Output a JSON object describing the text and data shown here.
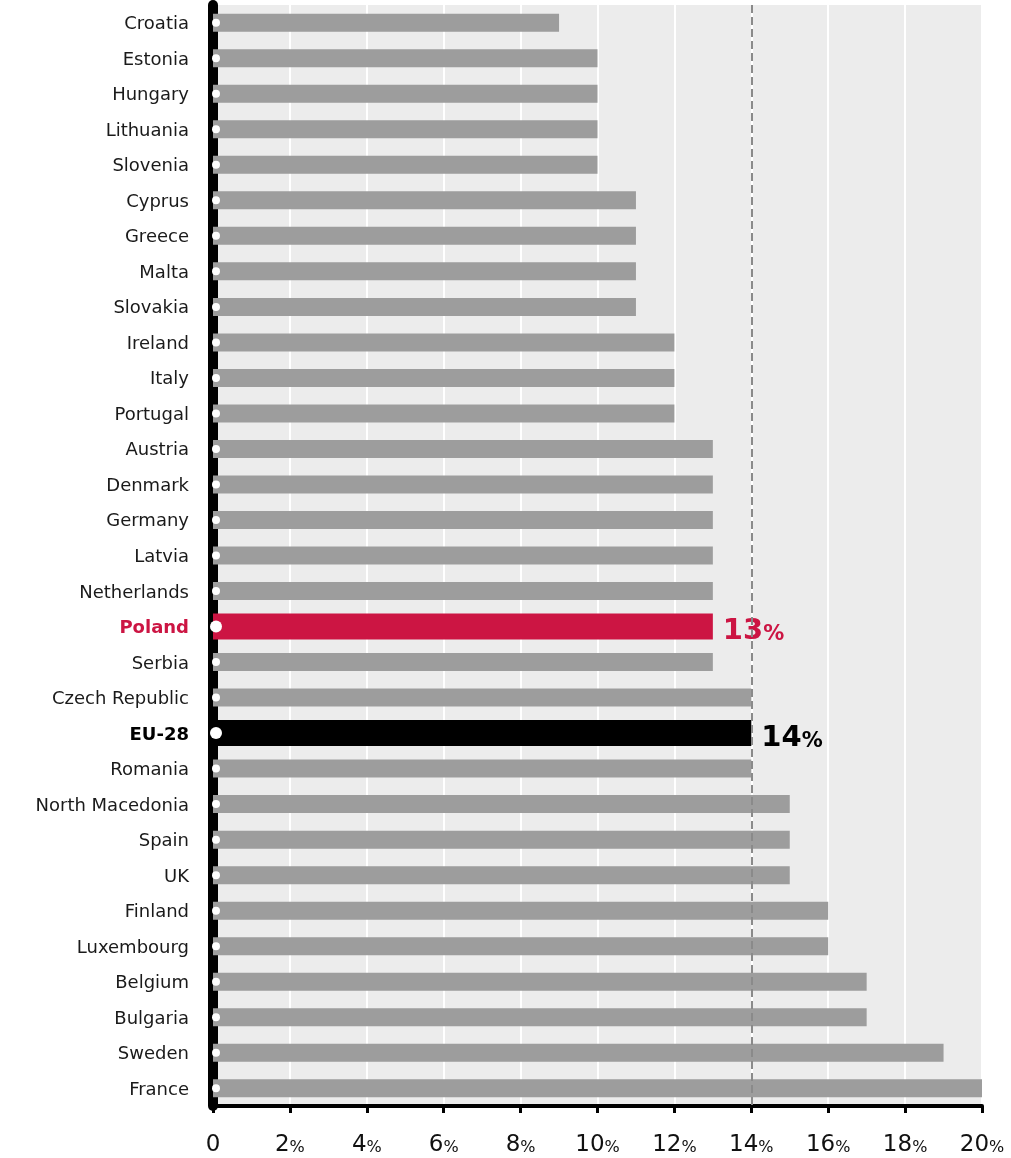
{
  "chart_data": {
    "type": "bar",
    "orientation": "horizontal",
    "categories": [
      "Croatia",
      "Estonia",
      "Hungary",
      "Lithuania",
      "Slovenia",
      "Cyprus",
      "Greece",
      "Malta",
      "Slovakia",
      "Ireland",
      "Italy",
      "Portugal",
      "Austria",
      "Denmark",
      "Germany",
      "Latvia",
      "Netherlands",
      "Poland",
      "Serbia",
      "Czech Republic",
      "EU-28",
      "Romania",
      "North Macedonia",
      "Spain",
      "UK",
      "Finland",
      "Luxembourg",
      "Belgium",
      "Bulgaria",
      "Sweden",
      "France"
    ],
    "values": [
      9,
      10,
      10,
      10,
      10,
      11,
      11,
      11,
      11,
      12,
      12,
      12,
      13,
      13,
      13,
      13,
      13,
      13,
      13,
      14,
      14,
      14,
      15,
      15,
      15,
      16,
      16,
      17,
      17,
      19,
      20
    ],
    "colors": [
      "#9d9d9d",
      "#9d9d9d",
      "#9d9d9d",
      "#9d9d9d",
      "#9d9d9d",
      "#9d9d9d",
      "#9d9d9d",
      "#9d9d9d",
      "#9d9d9d",
      "#9d9d9d",
      "#9d9d9d",
      "#9d9d9d",
      "#9d9d9d",
      "#9d9d9d",
      "#9d9d9d",
      "#9d9d9d",
      "#9d9d9d",
      "#cc1543",
      "#9d9d9d",
      "#9d9d9d",
      "#000000",
      "#9d9d9d",
      "#9d9d9d",
      "#9d9d9d",
      "#9d9d9d",
      "#9d9d9d",
      "#9d9d9d",
      "#9d9d9d",
      "#9d9d9d",
      "#9d9d9d",
      "#9d9d9d"
    ],
    "value_labels": [
      null,
      null,
      null,
      null,
      null,
      null,
      null,
      null,
      null,
      null,
      null,
      null,
      null,
      null,
      null,
      null,
      null,
      "13%",
      null,
      null,
      "14%",
      null,
      null,
      null,
      null,
      null,
      null,
      null,
      null,
      null,
      null
    ],
    "xlim": [
      0,
      20
    ],
    "xticks": [
      0,
      {
        "value": 2,
        "label": "2%"
      },
      {
        "value": 4,
        "label": "4%"
      },
      {
        "value": 6,
        "label": "6%"
      },
      {
        "value": 8,
        "label": "8%"
      },
      {
        "value": 10,
        "label": "10%"
      },
      {
        "value": 12,
        "label": "12%"
      },
      {
        "value": 14,
        "label": "14%"
      },
      {
        "value": 16,
        "label": "16%"
      },
      {
        "value": 18,
        "label": "18%"
      },
      {
        "value": 20,
        "label": "20%"
      }
    ],
    "grid": "x",
    "ref_lines": [
      {
        "axis": "x",
        "value": 14,
        "color": "#8a8a8a",
        "line_style": "dashed"
      }
    ]
  }
}
